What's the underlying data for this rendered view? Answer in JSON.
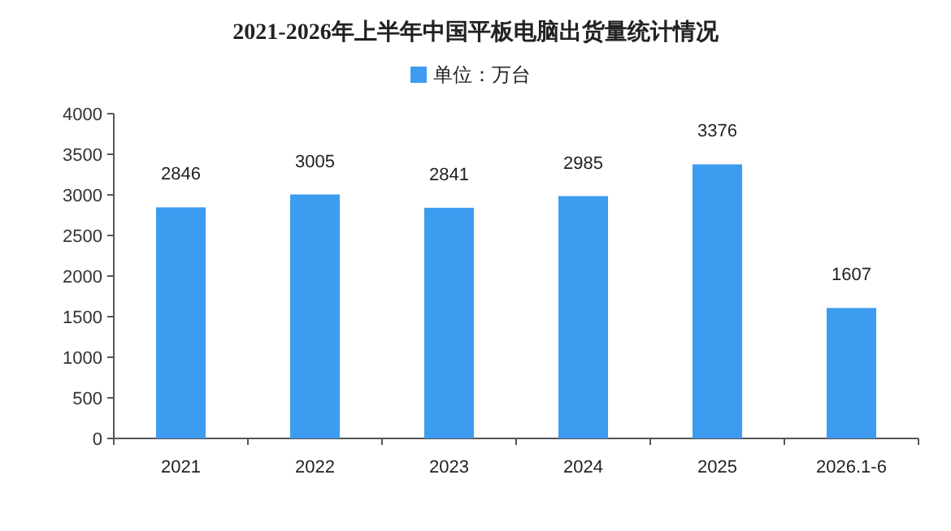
{
  "chart_data": {
    "type": "bar",
    "title": "2021-2026年上半年中国平板电脑出货量统计情况",
    "categories": [
      "2021",
      "2022",
      "2023",
      "2024",
      "2025",
      "2026.1-6"
    ],
    "series": [
      {
        "name": "单位：万台",
        "color": "#3d9cf0",
        "values": [
          2846,
          3005,
          2841,
          2985,
          3376,
          1607
        ]
      }
    ],
    "ylim": [
      0,
      4000
    ],
    "yticks": [
      0,
      500,
      1000,
      1500,
      2000,
      2500,
      3000,
      3500,
      4000
    ],
    "data_labels": true,
    "legend": "top",
    "grid": false
  }
}
